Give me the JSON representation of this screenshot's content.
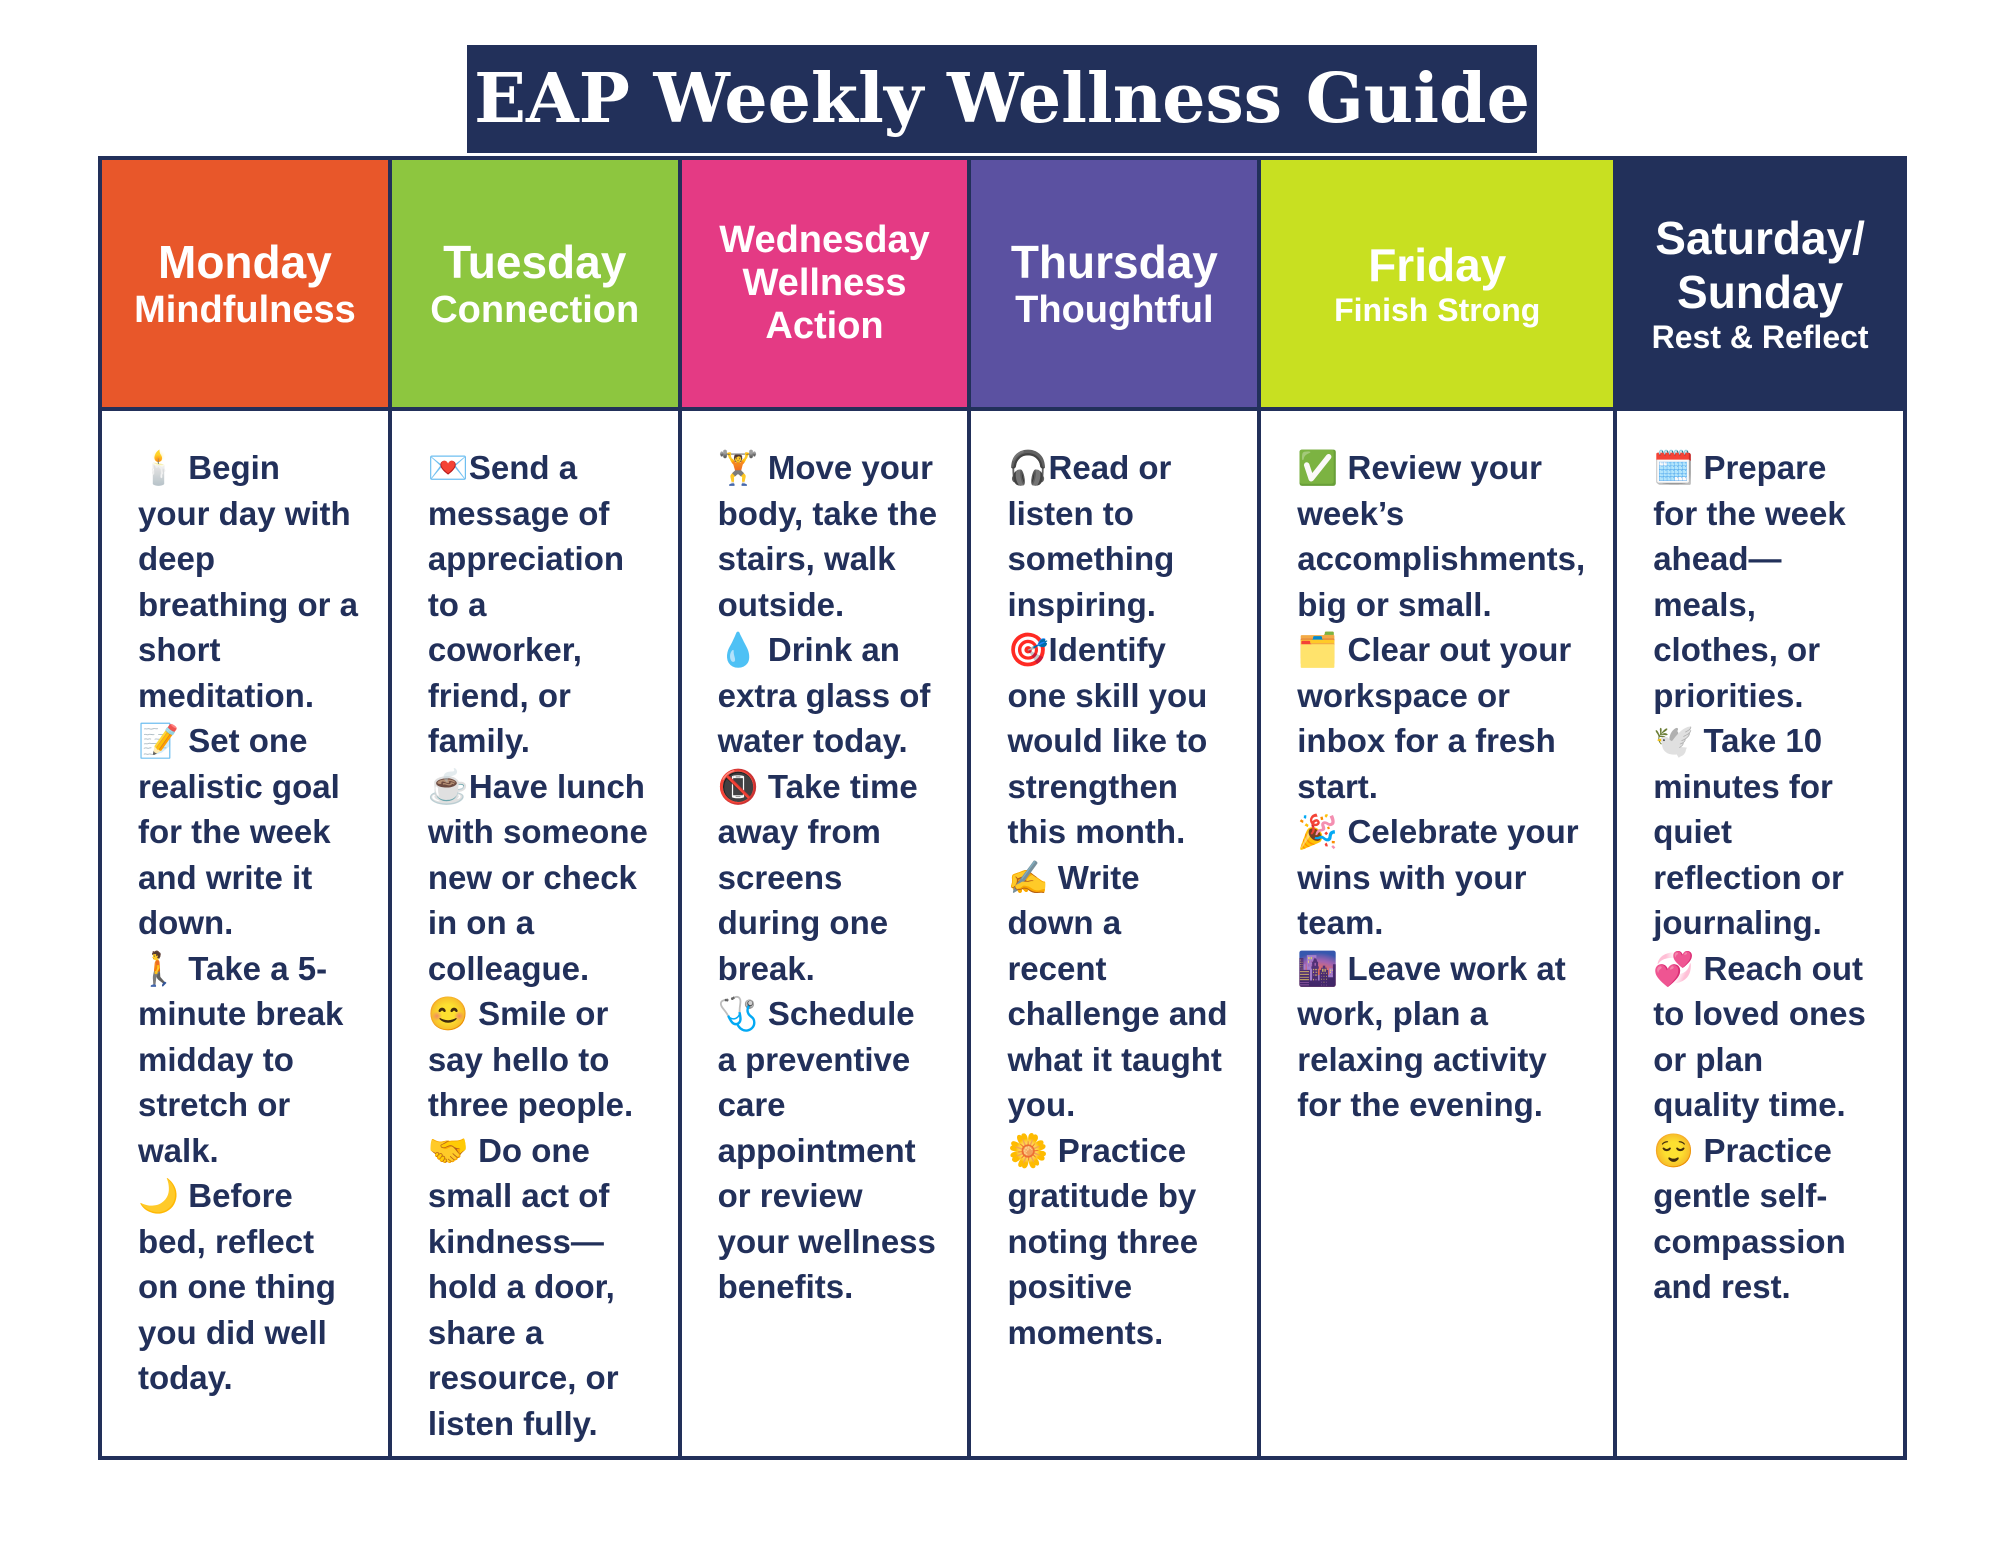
{
  "title": "EAP Weekly Wellness Guide",
  "columns": [
    {
      "header": [
        "Monday",
        "Mindfulness"
      ],
      "color": "#e8572a",
      "items": [
        "🕯️ Begin your day with deep breathing or a short meditation.",
        "📝 Set one realistic goal for the week and write it down.",
        "🚶 Take a 5-minute break midday to stretch or walk.",
        "🌙 Before bed, reflect on one thing you did well today."
      ]
    },
    {
      "header": [
        "Tuesday",
        "Connection"
      ],
      "color": "#8dc63f",
      "items": [
        "💌Send a message of appreciation to a coworker, friend, or family.",
        "☕Have lunch with someone new or check in on a colleague.",
        "😊 Smile or say hello to three people.",
        "🤝 Do one small act of kindness—hold a door, share a resource, or listen fully."
      ]
    },
    {
      "header": [
        "Wednesday",
        "Wellness",
        "Action"
      ],
      "color": "#e43a84",
      "items": [
        "🏋️ Move your body, take the stairs, walk outside.",
        "💧 Drink an extra glass of water today.",
        "📵 Take time away from screens during one break.",
        "🩺 Schedule a preventive care appointment or review your wellness benefits."
      ]
    },
    {
      "header": [
        "Thursday",
        "Thoughtful"
      ],
      "color": "#5b51a1",
      "items": [
        "🎧Read or listen to something inspiring.",
        "🎯Identify one skill you would like to strengthen this month.",
        "✍️ Write down a recent challenge and what it taught you.",
        "🌼 Practice gratitude by noting three positive moments."
      ]
    },
    {
      "header": [
        "Friday",
        "Finish Strong"
      ],
      "color": "#c8e021",
      "items": [
        "✅ Review your week’s accomplishments, big or small.",
        "🗂️ Clear out your workspace or inbox for a fresh start.",
        "🎉 Celebrate your wins with your team.",
        "🌆 Leave work at work, plan a relaxing activity for the evening."
      ]
    },
    {
      "header": [
        "Saturday/",
        "Sunday",
        "Rest & Reflect"
      ],
      "color": "#22305a",
      "items": [
        "🗓️ Prepare for the week ahead—meals, clothes, or priorities.",
        "🕊️ Take 10 minutes for quiet reflection or journaling.",
        "💞 Reach out to loved ones or plan quality time.",
        "😌 Practice gentle self-compassion and rest."
      ]
    }
  ]
}
